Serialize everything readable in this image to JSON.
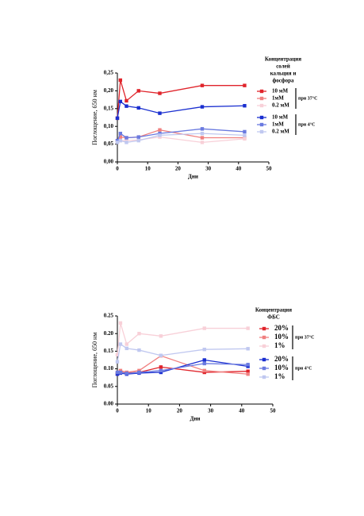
{
  "chart_data": [
    {
      "type": "line",
      "x_label": "Дни",
      "y_label": "Поглощение, 650 нм",
      "legend_title": [
        "Концентрация",
        "солей",
        "кальция и",
        "фосфора"
      ],
      "legend_groups": [
        "при 37°C",
        "при 4°C"
      ],
      "x": [
        0,
        1,
        3,
        7,
        14,
        28,
        42
      ],
      "xlim": [
        0,
        50
      ],
      "xticks": [
        0,
        10,
        20,
        30,
        40,
        50
      ],
      "ylim": [
        0,
        0.25
      ],
      "yticks": [
        {
          "value": 0,
          "label": "0,00"
        },
        {
          "value": 0.05,
          "label": "0,05"
        },
        {
          "value": 0.1,
          "label": "0,10"
        },
        {
          "value": 0.15,
          "label": "0,15"
        },
        {
          "value": 0.2,
          "label": "0,20"
        },
        {
          "value": 0.25,
          "label": "0,25"
        }
      ],
      "series": [
        {
          "name": "10 мМ",
          "color": "#e0242b",
          "values": [
            0.123,
            0.23,
            0.172,
            0.2,
            0.193,
            0.215,
            0.215
          ]
        },
        {
          "name": "1мМ",
          "color": "#f08080",
          "values": [
            0.06,
            0.07,
            0.068,
            0.07,
            0.09,
            0.068,
            0.068
          ]
        },
        {
          "name": "0.2 мМ",
          "color": "#f8d0d8",
          "values": [
            0.055,
            0.06,
            0.06,
            0.062,
            0.07,
            0.055,
            0.065
          ]
        },
        {
          "name": "10 мМ",
          "color": "#1a2fd0",
          "values": [
            0.123,
            0.17,
            0.157,
            0.152,
            0.137,
            0.155,
            0.158
          ]
        },
        {
          "name": "1мМ",
          "color": "#6a7ae0",
          "values": [
            0.06,
            0.08,
            0.068,
            0.07,
            0.08,
            0.093,
            0.085
          ]
        },
        {
          "name": "0.2 мМ",
          "color": "#c0c8f0",
          "values": [
            0.055,
            0.06,
            0.055,
            0.06,
            0.075,
            0.08,
            0.075
          ]
        }
      ]
    },
    {
      "type": "line",
      "x_label": "Дни",
      "y_label": "Поглощение, 650 нм",
      "legend_title": [
        "Концентрация",
        "ФБС"
      ],
      "legend_groups": [
        "при 37°C",
        "при 4°C"
      ],
      "x": [
        0,
        1,
        3,
        7,
        14,
        28,
        42
      ],
      "xlim": [
        0,
        50
      ],
      "xticks": [
        0,
        10,
        20,
        30,
        40,
        50
      ],
      "ylim": [
        0,
        0.25
      ],
      "yticks": [
        {
          "value": 0,
          "label": "0.00"
        },
        {
          "value": 0.05,
          "label": "0.05"
        },
        {
          "value": 0.1,
          "label": "0.10"
        },
        {
          "value": 0.15,
          "label": "0.15"
        },
        {
          "value": 0.2,
          "label": "0.20"
        },
        {
          "value": 0.25,
          "label": "0.25"
        }
      ],
      "series": [
        {
          "name": "20%",
          "color": "#e0242b",
          "values": [
            0.085,
            0.09,
            0.088,
            0.09,
            0.105,
            0.09,
            0.093
          ]
        },
        {
          "name": "10%",
          "color": "#f08080",
          "values": [
            0.09,
            0.095,
            0.09,
            0.095,
            0.137,
            0.095,
            0.085
          ]
        },
        {
          "name": "1%",
          "color": "#f8d0d8",
          "values": [
            0.14,
            0.23,
            0.17,
            0.2,
            0.193,
            0.215,
            0.215
          ]
        },
        {
          "name": "20%",
          "color": "#1a2fd0",
          "values": [
            0.085,
            0.088,
            0.085,
            0.088,
            0.09,
            0.125,
            0.107
          ]
        },
        {
          "name": "10%",
          "color": "#6a7ae0",
          "values": [
            0.09,
            0.09,
            0.087,
            0.09,
            0.095,
            0.115,
            0.112
          ]
        },
        {
          "name": "1%",
          "color": "#c0c8f0",
          "values": [
            0.12,
            0.17,
            0.158,
            0.153,
            0.138,
            0.155,
            0.157
          ]
        }
      ]
    }
  ]
}
